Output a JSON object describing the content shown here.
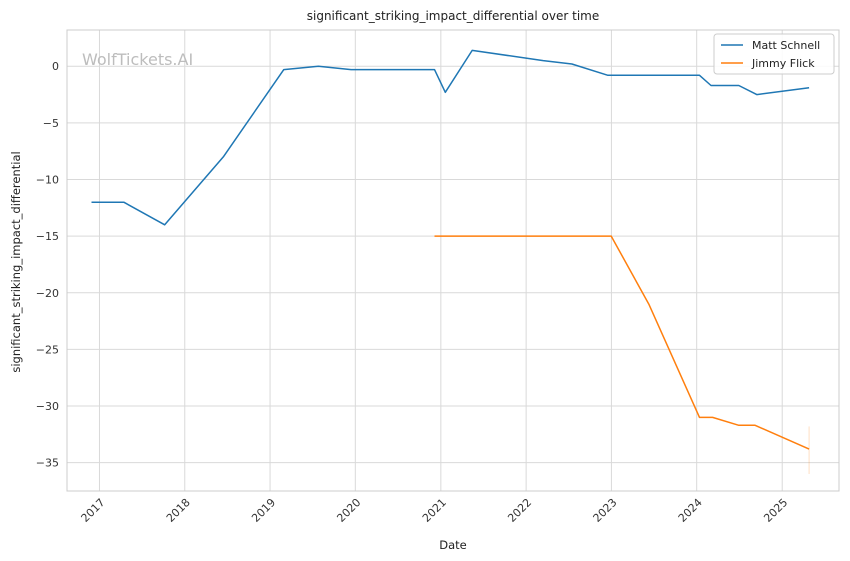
{
  "chart_data": {
    "type": "line",
    "title": "significant_striking_impact_differential over time",
    "xlabel": "Date",
    "ylabel": "significant_striking_impact_differential",
    "watermark": "WolfTickets.AI",
    "xlim": [
      "2016-08-15",
      "2025-09-01"
    ],
    "ylim": [
      -37.5,
      3.2
    ],
    "x_ticks": [
      "2017",
      "2018",
      "2019",
      "2020",
      "2021",
      "2022",
      "2023",
      "2024",
      "2025"
    ],
    "y_ticks": [
      0,
      -5,
      -10,
      -15,
      -20,
      -25,
      -30,
      -35
    ],
    "y_tick_labels": [
      "0",
      "−5",
      "−10",
      "−15",
      "−20",
      "−25",
      "−30",
      "−35"
    ],
    "grid": true,
    "legend_position": "top-right",
    "series": [
      {
        "name": "Matt Schnell",
        "color": "#1f77b4",
        "points": [
          [
            "2016-11-28",
            -12
          ],
          [
            "2017-04-15",
            -12
          ],
          [
            "2017-10-07",
            -14
          ],
          [
            "2018-06-15",
            -8
          ],
          [
            "2019-03-01",
            -0.3
          ],
          [
            "2019-07-27",
            0
          ],
          [
            "2019-12-14",
            -0.3
          ],
          [
            "2020-12-05",
            -0.3
          ],
          [
            "2021-01-20",
            -2.3
          ],
          [
            "2021-05-15",
            1.4
          ],
          [
            "2022-03-15",
            0.5
          ],
          [
            "2022-07-16",
            0.2
          ],
          [
            "2022-12-17",
            -0.8
          ],
          [
            "2024-01-13",
            -0.8
          ],
          [
            "2024-03-02",
            -1.7
          ],
          [
            "2024-06-29",
            -1.7
          ],
          [
            "2024-09-14",
            -2.5
          ],
          [
            "2025-04-26",
            -1.9
          ]
        ]
      },
      {
        "name": "Jimmy Flick",
        "color": "#ff7f0e",
        "points": [
          [
            "2020-12-05",
            -15
          ],
          [
            "2022-12-31",
            -15
          ],
          [
            "2023-06-10",
            -21
          ],
          [
            "2024-01-13",
            -31
          ],
          [
            "2024-03-09",
            -31
          ],
          [
            "2024-06-29",
            -31.7
          ],
          [
            "2024-09-07",
            -31.7
          ],
          [
            "2025-04-26",
            -33.8
          ]
        ],
        "error_bar": {
          "x": "2025-04-26",
          "low": -36,
          "high": -31.8
        }
      }
    ]
  }
}
